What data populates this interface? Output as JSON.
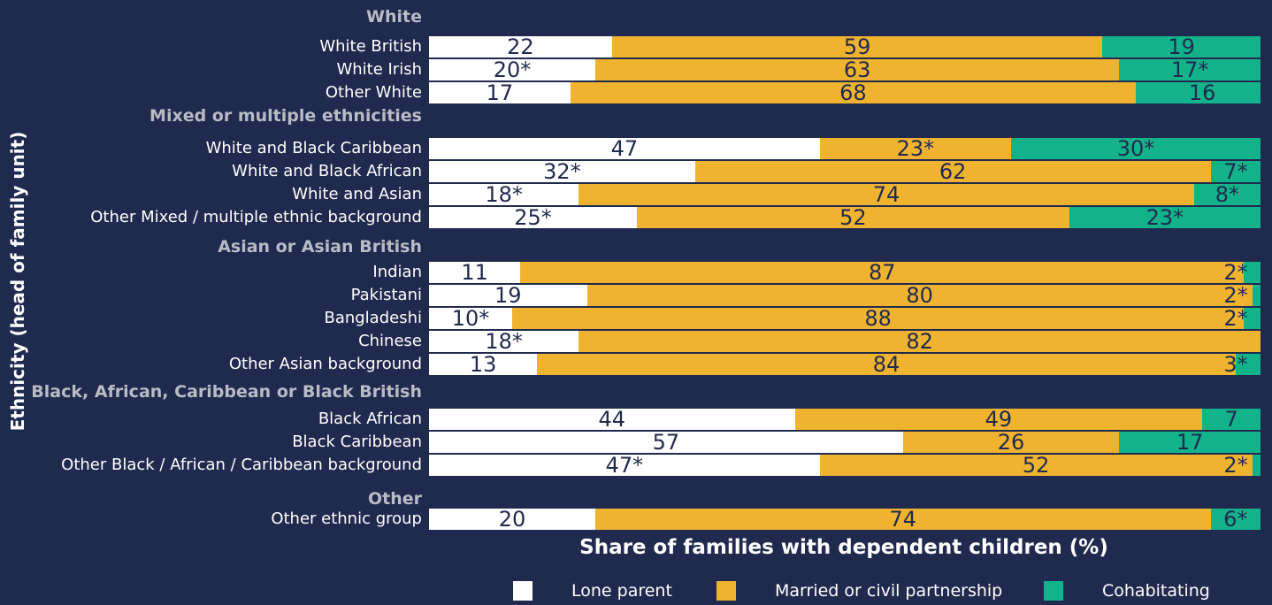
{
  "chart_data": {
    "type": "bar",
    "orientation": "horizontal",
    "stacked": true,
    "xlabel": "Share of families with dependent children (%)",
    "ylabel": "Ethnicity (head of family unit)",
    "xlim": [
      0,
      100
    ],
    "legend_position": "bottom",
    "series": [
      {
        "name": "Lone parent",
        "color": "#ffffff"
      },
      {
        "name": "Married or civil partnership",
        "color": "#f0b330"
      },
      {
        "name": "Cohabitating",
        "color": "#12b38a"
      }
    ],
    "groups": [
      {
        "name": "White",
        "rows": [
          {
            "label": "White British",
            "values": [
              22,
              59,
              19
            ],
            "labels": [
              "22",
              "59",
              "19"
            ]
          },
          {
            "label": "White Irish",
            "values": [
              20,
              63,
              17
            ],
            "labels": [
              "20*",
              "63",
              "17*"
            ]
          },
          {
            "label": "Other White",
            "values": [
              17,
              68,
              16
            ],
            "labels": [
              "17",
              "68",
              "16"
            ]
          }
        ]
      },
      {
        "name": "Mixed or multiple ethnicities",
        "rows": [
          {
            "label": "White and Black Caribbean",
            "values": [
              47,
              23,
              30
            ],
            "labels": [
              "47",
              "23*",
              "30*"
            ]
          },
          {
            "label": "White and Black African",
            "values": [
              32,
              62,
              7
            ],
            "labels": [
              "32*",
              "62",
              "7*"
            ]
          },
          {
            "label": "White and Asian",
            "values": [
              18,
              74,
              8
            ],
            "labels": [
              "18*",
              "74",
              "8*"
            ]
          },
          {
            "label": "Other Mixed / multiple ethnic background",
            "values": [
              25,
              52,
              23
            ],
            "labels": [
              "25*",
              "52",
              "23*"
            ]
          }
        ]
      },
      {
        "name": "Asian or Asian British",
        "rows": [
          {
            "label": "Indian",
            "values": [
              11,
              87,
              2
            ],
            "labels": [
              "11",
              "87",
              "2*"
            ]
          },
          {
            "label": "Pakistani",
            "values": [
              19,
              80,
              2
            ],
            "labels": [
              "19",
              "80",
              "2*"
            ]
          },
          {
            "label": "Bangladeshi",
            "values": [
              10,
              88,
              2
            ],
            "labels": [
              "10*",
              "88",
              "2*"
            ]
          },
          {
            "label": "Chinese",
            "values": [
              18,
              82,
              0
            ],
            "labels": [
              "18*",
              "82",
              ""
            ]
          },
          {
            "label": "Other Asian background",
            "values": [
              13,
              84,
              3
            ],
            "labels": [
              "13",
              "84",
              "3*"
            ]
          }
        ]
      },
      {
        "name": "Black, African, Caribbean or Black British",
        "rows": [
          {
            "label": "Black African",
            "values": [
              44,
              49,
              7
            ],
            "labels": [
              "44",
              "49",
              "7"
            ]
          },
          {
            "label": "Black Caribbean",
            "values": [
              57,
              26,
              17
            ],
            "labels": [
              "57",
              "26",
              "17"
            ]
          },
          {
            "label": "Other Black / African / Caribbean background",
            "values": [
              47,
              52,
              2
            ],
            "labels": [
              "47*",
              "52",
              "2*"
            ]
          }
        ]
      },
      {
        "name": "Other",
        "rows": [
          {
            "label": "Other ethnic group",
            "values": [
              20,
              74,
              6
            ],
            "labels": [
              "20",
              "74",
              "6*"
            ]
          }
        ]
      }
    ]
  }
}
